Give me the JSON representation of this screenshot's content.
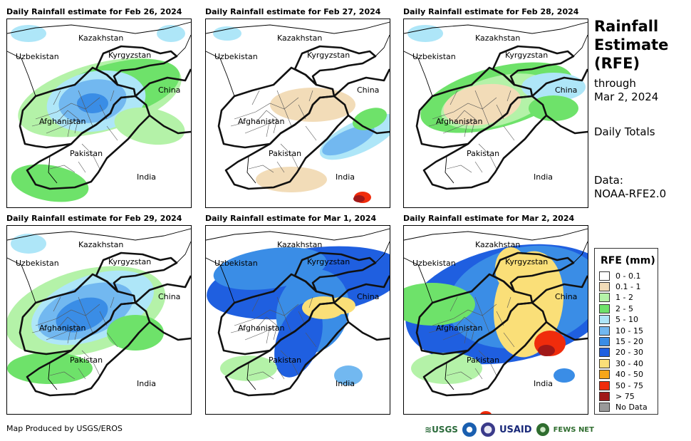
{
  "panels": [
    {
      "title": "Daily Rainfall estimate for Feb 26, 2024"
    },
    {
      "title": "Daily Rainfall estimate for Feb 27, 2024"
    },
    {
      "title": "Daily Rainfall estimate for Feb 28, 2024"
    },
    {
      "title": "Daily Rainfall estimate for Feb 29, 2024"
    },
    {
      "title": "Daily Rainfall estimate for Mar 1, 2024"
    },
    {
      "title": "Daily Rainfall estimate for Mar 2, 2024"
    }
  ],
  "map_labels": {
    "kazakhstan": "Kazakhstan",
    "uzbekistan": "Uzbekistan",
    "kyrgyzstan": "Kyrgyzstan",
    "china": "China",
    "afghanistan": "Afghanistan",
    "pakistan": "Pakistan",
    "india": "India"
  },
  "side": {
    "title_line1": "Rainfall",
    "title_line2": "Estimate",
    "title_line3": "(RFE)",
    "through": "through",
    "date": "Mar 2, 2024",
    "totals": "Daily Totals",
    "data_label": "Data:",
    "data_source": "NOAA-RFE2.0"
  },
  "legend": {
    "title": "RFE (mm)",
    "items": [
      {
        "label": "0 - 0.1",
        "color": "#ffffff"
      },
      {
        "label": "0.1 - 1",
        "color": "#f2dcb8"
      },
      {
        "label": "1 - 2",
        "color": "#b4f2a8"
      },
      {
        "label": "2 - 5",
        "color": "#6ee26a"
      },
      {
        "label": "5 - 10",
        "color": "#aee6f8"
      },
      {
        "label": "10 - 15",
        "color": "#72b8f0"
      },
      {
        "label": "15 - 20",
        "color": "#3a8de6"
      },
      {
        "label": "20 - 30",
        "color": "#1f5fe0"
      },
      {
        "label": "30 - 40",
        "color": "#fadf78"
      },
      {
        "label": "40 - 50",
        "color": "#f7a61a"
      },
      {
        "label": "50 - 75",
        "color": "#f02c0c"
      },
      {
        "label": "> 75",
        "color": "#a01818"
      },
      {
        "label": "No Data",
        "color": "#999999"
      }
    ]
  },
  "footer": {
    "credit": "Map Produced by USGS/EROS",
    "usgs": "USGS",
    "usaid": "USAID",
    "fews": "FEWS NET"
  }
}
